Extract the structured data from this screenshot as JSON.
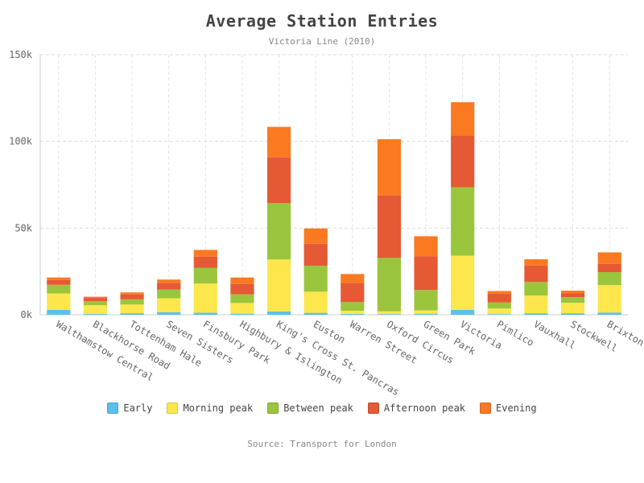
{
  "chart_data": {
    "type": "bar",
    "stacked": true,
    "title": "Average Station Entries",
    "subtitle": "Victoria Line (2010)",
    "source": "Source: Transport for London",
    "ylim": [
      0,
      150000
    ],
    "yticks": [
      0,
      50000,
      100000,
      150000
    ],
    "ytick_labels": [
      "0k",
      "50k",
      "100k",
      "150k"
    ],
    "grid": true,
    "legend_position": "bottom",
    "categories": [
      "Walthamstow Central",
      "Blackhorse Road",
      "Tottenham Hale",
      "Seven Sisters",
      "Finsbury Park",
      "Highbury & Islington",
      "King's Cross St. Pancras",
      "Euston",
      "Warren Street",
      "Oxford Circus",
      "Green Park",
      "Victoria",
      "Pimlico",
      "Vauxhall",
      "Stockwell",
      "Brixton"
    ],
    "series": [
      {
        "name": "Early",
        "color": "#5bc0eb",
        "values": [
          2800,
          500,
          900,
          1500,
          1200,
          600,
          1900,
          1100,
          500,
          400,
          600,
          2800,
          400,
          900,
          900,
          1300
        ]
      },
      {
        "name": "Morning peak",
        "color": "#fde74c",
        "values": [
          9500,
          5000,
          5000,
          8000,
          16800,
          6200,
          30000,
          12200,
          1800,
          1600,
          1900,
          31300,
          3200,
          10200,
          6000,
          15800
        ]
      },
      {
        "name": "Between peak",
        "color": "#9bc53d",
        "values": [
          5000,
          2400,
          3000,
          5000,
          9000,
          5000,
          32500,
          15000,
          5000,
          30800,
          11800,
          39500,
          3600,
          7800,
          3200,
          7500
        ]
      },
      {
        "name": "Afternoon peak",
        "color": "#e55934",
        "values": [
          2800,
          1800,
          2800,
          3800,
          6500,
          6000,
          26500,
          12700,
          11000,
          36000,
          19500,
          29700,
          4900,
          9500,
          2200,
          4800
        ]
      },
      {
        "name": "Evening",
        "color": "#fa7921",
        "values": [
          1400,
          700,
          1200,
          2000,
          3900,
          3700,
          17500,
          8800,
          5200,
          32500,
          11500,
          19300,
          1600,
          3600,
          1600,
          6600
        ]
      }
    ]
  }
}
